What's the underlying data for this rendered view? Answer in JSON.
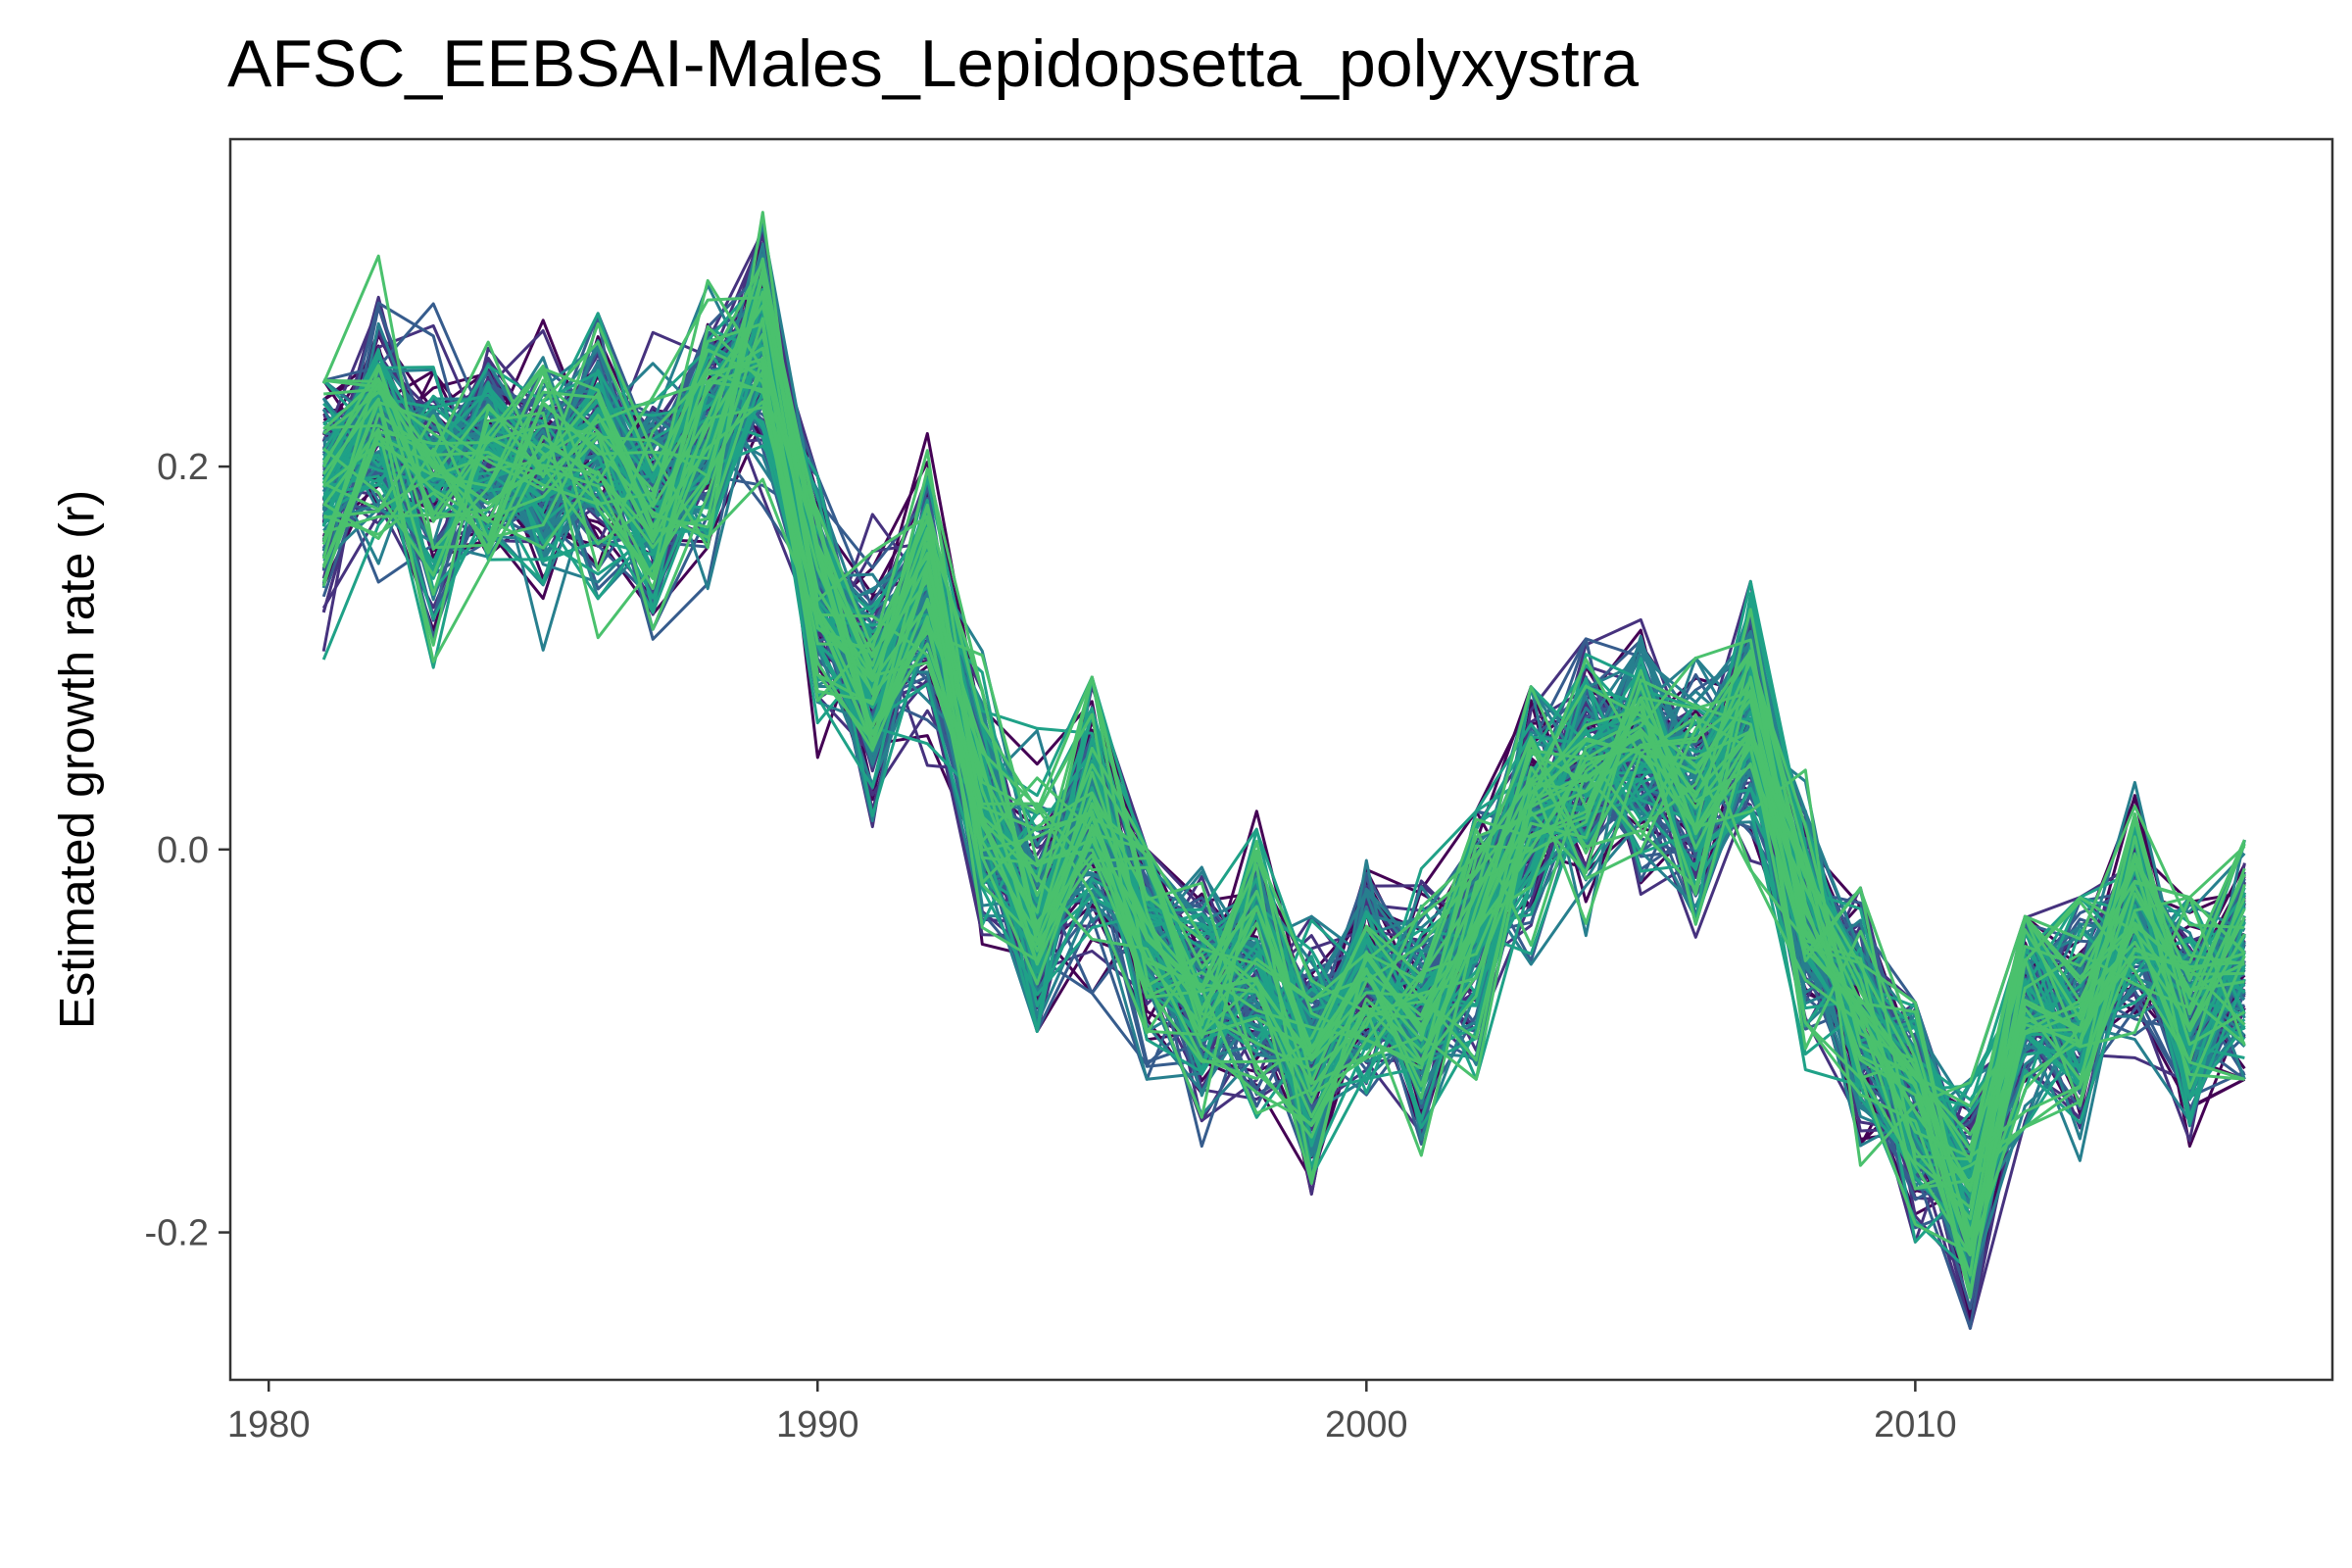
{
  "chart_data": {
    "type": "line",
    "title": "AFSC_EEBSAI-Males_Lepidopsetta_polyxystra",
    "xlabel": "",
    "ylabel": "Estimated growth rate (r)",
    "xlim": [
      1979.3,
      2017.6
    ],
    "ylim": [
      -0.277,
      0.371
    ],
    "x_ticks": [
      1980,
      1990,
      2000,
      2010
    ],
    "x_tick_labels": [
      "1980",
      "1990",
      "2000",
      "2010"
    ],
    "y_ticks": [
      -0.2,
      0.0,
      0.2
    ],
    "y_tick_labels": [
      "-0.2",
      "0.0",
      "0.2"
    ],
    "grid": false,
    "legend": "none",
    "x": [
      1981,
      1982,
      1983,
      1984,
      1985,
      1986,
      1987,
      1988,
      1989,
      1990,
      1991,
      1992,
      1993,
      1994,
      1995,
      1996,
      1997,
      1998,
      1999,
      2000,
      2001,
      2002,
      2003,
      2004,
      2005,
      2006,
      2007,
      2008,
      2009,
      2010,
      2011,
      2012,
      2013,
      2014,
      2015,
      2016
    ],
    "mean_trajectory": [
      0.185,
      0.225,
      0.195,
      0.205,
      0.2,
      0.21,
      0.175,
      0.215,
      0.265,
      0.14,
      0.085,
      0.14,
      0.03,
      -0.03,
      0.02,
      -0.045,
      -0.075,
      -0.06,
      -0.105,
      -0.065,
      -0.09,
      -0.04,
      0.02,
      0.04,
      0.055,
      0.025,
      0.07,
      -0.035,
      -0.085,
      -0.14,
      -0.185,
      -0.08,
      -0.085,
      -0.03,
      -0.085,
      -0.06
    ],
    "series_count": 160,
    "series_envelope": {
      "min": [
        0.085,
        0.12,
        0.095,
        0.085,
        0.095,
        0.04,
        0.075,
        0.12,
        0.155,
        0.01,
        0.0,
        0.035,
        -0.05,
        -0.095,
        -0.075,
        -0.12,
        -0.155,
        -0.14,
        -0.18,
        -0.14,
        -0.16,
        -0.12,
        -0.06,
        -0.045,
        -0.025,
        -0.085,
        -0.02,
        -0.115,
        -0.165,
        -0.205,
        -0.25,
        -0.145,
        -0.18,
        -0.12,
        -0.155,
        -0.12
      ],
      "max": [
        0.245,
        0.31,
        0.285,
        0.265,
        0.3,
        0.28,
        0.27,
        0.305,
        0.34,
        0.195,
        0.175,
        0.23,
        0.12,
        0.065,
        0.09,
        0.0,
        0.01,
        0.02,
        -0.035,
        0.005,
        -0.01,
        0.02,
        0.085,
        0.11,
        0.12,
        0.1,
        0.14,
        0.045,
        -0.02,
        -0.08,
        -0.12,
        -0.035,
        -0.025,
        0.035,
        -0.025,
        0.005
      ]
    },
    "colors": {
      "palette": [
        "#440154",
        "#46327e",
        "#365c8d",
        "#277f8e",
        "#1fa187",
        "#4ac16d"
      ],
      "panel_border": "#333333",
      "tick_text": "#4d4d4d"
    }
  }
}
